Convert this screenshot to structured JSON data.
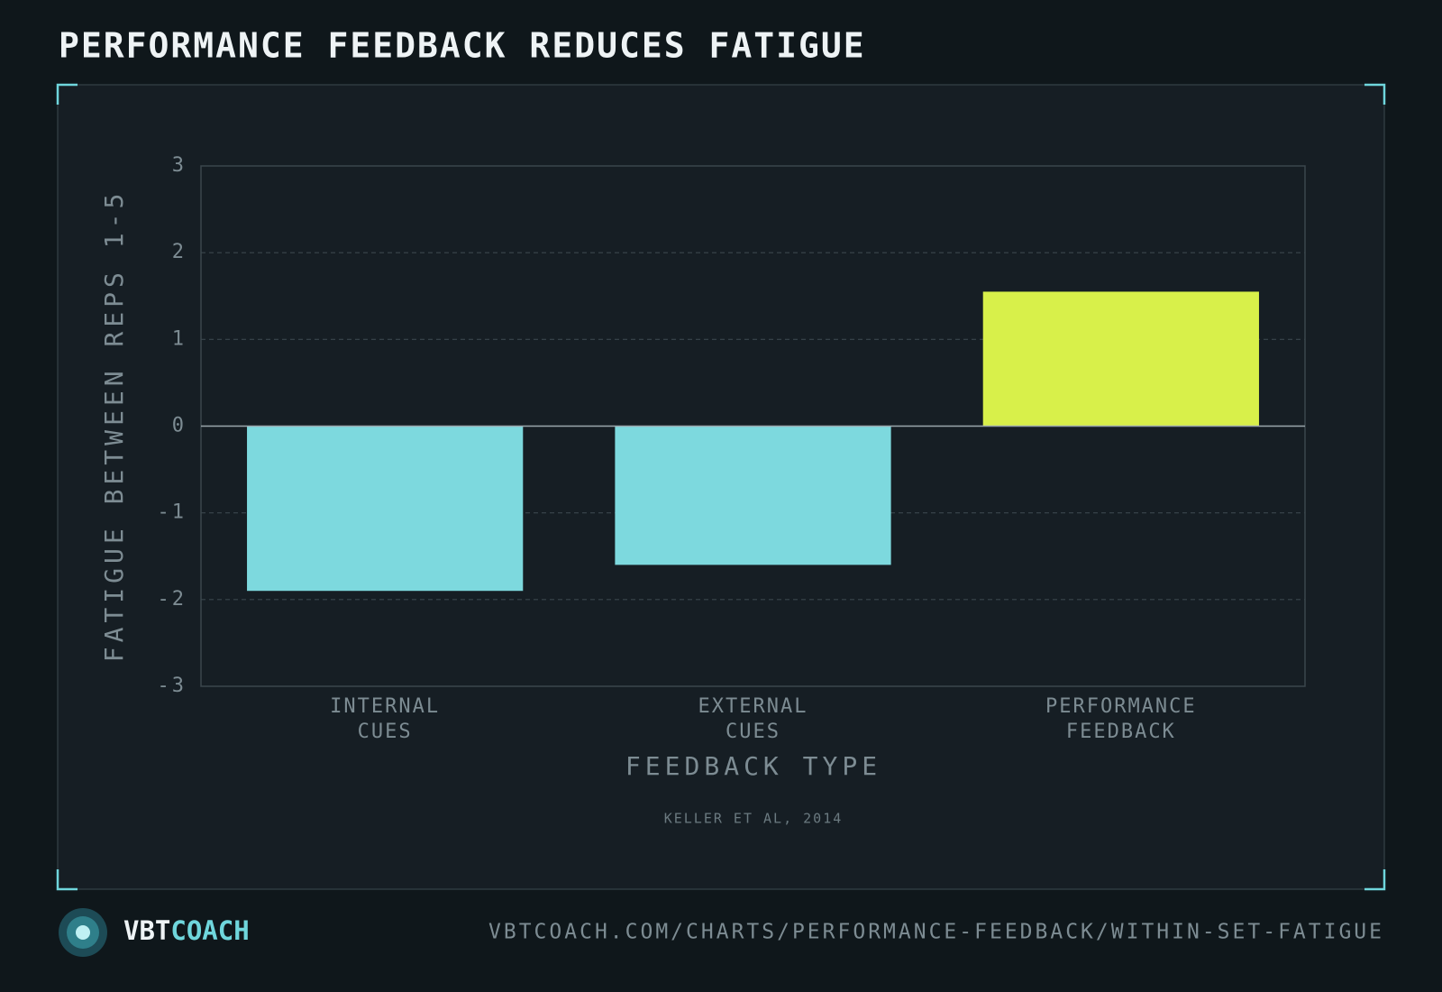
{
  "chart_data": {
    "type": "bar",
    "title": "PERFORMANCE FEEDBACK REDUCES FATIGUE",
    "y_label": "FATIGUE BETWEEN REPS 1-5",
    "x_label": "FEEDBACK TYPE",
    "source": "KELLER ET AL, 2014",
    "categories": [
      [
        "INTERNAL",
        "CUES"
      ],
      [
        "EXTERNAL",
        "CUES"
      ],
      [
        "PERFORMANCE",
        "FEEDBACK"
      ]
    ],
    "values": [
      -1.9,
      -1.6,
      1.55
    ],
    "colors": [
      "#7dd9de",
      "#7dd9de",
      "#d8f04a"
    ],
    "ylim": [
      -3,
      3
    ],
    "yticks": [
      -3,
      -2,
      -1,
      0,
      1,
      2,
      3
    ],
    "grid": true
  },
  "footer": {
    "brand": [
      "VBT",
      "COACH"
    ],
    "url": "VBTCOACH.COM/CHARTS/PERFORMANCE-FEEDBACK/WITHIN-SET-FATIGUE"
  }
}
